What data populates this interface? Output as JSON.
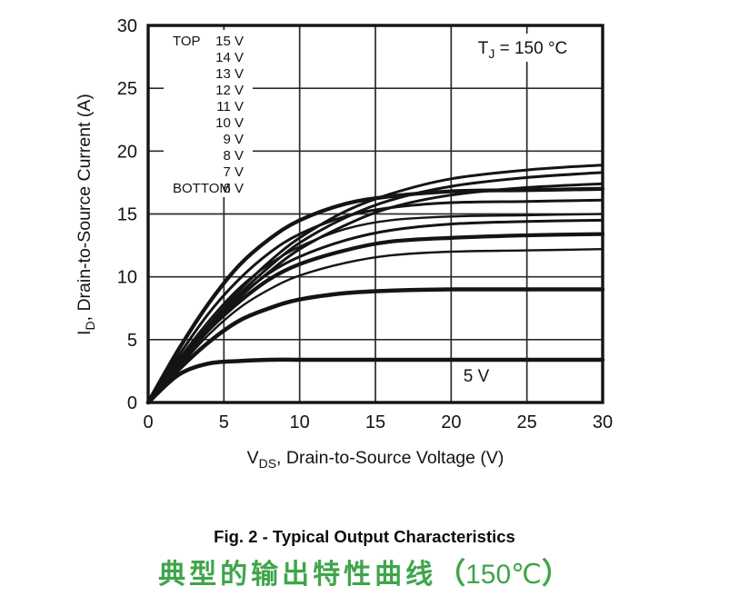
{
  "figure": {
    "y_axis": {
      "label_pre": "I",
      "label_sub": "D",
      "label_post": ", Drain-to-Source Current (A)",
      "ticks": [
        0,
        5,
        10,
        15,
        20,
        25,
        30
      ]
    },
    "x_axis": {
      "label_pre": "V",
      "label_sub": "DS",
      "label_post": ", Drain-to-Source Voltage (V)",
      "ticks": [
        0,
        5,
        10,
        15,
        20,
        25,
        30
      ]
    },
    "annotation": {
      "pre": "T",
      "sub": "J",
      "post": " = 150 °C"
    },
    "inplot_label": "5 V",
    "legend": {
      "top_label": "TOP",
      "bottom_label": "BOTTOM",
      "entries": [
        "15 V",
        "14 V",
        "13 V",
        "12 V",
        "11 V",
        "10 V",
        "9 V",
        "8 V",
        "7 V",
        "6 V"
      ]
    }
  },
  "captions": {
    "fig": "Fig. 2 - Typical Output Characteristics",
    "cn_main": "典型的输出特性曲线",
    "paren_open": "（",
    "temp": "150℃",
    "paren_close": "）"
  },
  "colors": {
    "curve": "#141414",
    "grid": "#2b2b2b",
    "caption_green": "#3fa54a"
  },
  "chart_data": {
    "type": "line",
    "title": "Fig. 2 - Typical Output Characteristics",
    "xlabel": "VDS, Drain-to-Source Voltage (V)",
    "ylabel": "ID, Drain-to-Source Current (A)",
    "annotation": "TJ = 150 °C",
    "xlim": [
      0,
      30
    ],
    "ylim": [
      0,
      30
    ],
    "x_ticks": [
      0,
      5,
      10,
      15,
      20,
      25,
      30
    ],
    "y_ticks": [
      0,
      5,
      10,
      15,
      20,
      25,
      30
    ],
    "grid": true,
    "legend_position": "top-left",
    "x": [
      0,
      2,
      4,
      6,
      8,
      10,
      13,
      16,
      20,
      25,
      30
    ],
    "series": [
      {
        "name": "VGS = 15 V",
        "lw": 3.0,
        "values": [
          0,
          3.2,
          6.2,
          8.9,
          11.2,
          13.1,
          15.2,
          16.6,
          17.8,
          18.5,
          18.9
        ]
      },
      {
        "name": "VGS = 14 V",
        "lw": 3.0,
        "values": [
          0,
          3.1,
          6.0,
          8.6,
          10.8,
          12.7,
          14.7,
          16.1,
          17.2,
          17.9,
          18.3
        ]
      },
      {
        "name": "VGS = 13 V",
        "lw": 3.0,
        "values": [
          0,
          3.0,
          5.8,
          8.3,
          10.4,
          12.2,
          14.1,
          15.5,
          16.5,
          17.1,
          17.4
        ]
      },
      {
        "name": "VGS = 12 V",
        "lw": 4.3,
        "values": [
          0,
          4.2,
          7.9,
          10.9,
          13.0,
          14.5,
          15.8,
          16.4,
          16.8,
          16.9,
          17.0
        ]
      },
      {
        "name": "VGS = 11 V",
        "lw": 3.0,
        "values": [
          0,
          3.7,
          7.1,
          9.8,
          11.9,
          13.4,
          14.8,
          15.5,
          15.9,
          16.0,
          16.1
        ]
      },
      {
        "name": "VGS = 10 V",
        "lw": 2.4,
        "values": [
          0,
          3.4,
          6.5,
          9.1,
          11.0,
          12.4,
          13.8,
          14.5,
          14.8,
          14.9,
          15.0
        ]
      },
      {
        "name": "VGS = 9 V",
        "lw": 3.0,
        "values": [
          0,
          3.1,
          6.0,
          8.4,
          10.3,
          11.6,
          12.9,
          13.7,
          14.2,
          14.4,
          14.5
        ]
      },
      {
        "name": "VGS = 8 V",
        "lw": 4.3,
        "values": [
          0,
          3.0,
          5.8,
          8.0,
          9.8,
          11.0,
          12.1,
          12.8,
          13.1,
          13.3,
          13.4
        ]
      },
      {
        "name": "VGS = 7 V",
        "lw": 2.4,
        "values": [
          0,
          2.8,
          5.4,
          7.5,
          9.0,
          10.1,
          11.1,
          11.7,
          12.0,
          12.1,
          12.2
        ]
      },
      {
        "name": "VGS = 6 V",
        "lw": 4.5,
        "values": [
          0,
          2.6,
          4.8,
          6.5,
          7.5,
          8.2,
          8.7,
          8.9,
          9.0,
          9.0,
          9.0
        ]
      },
      {
        "name": "VGS = 5 V",
        "lw": 4.5,
        "values": [
          0,
          2.2,
          3.1,
          3.3,
          3.4,
          3.4,
          3.4,
          3.4,
          3.4,
          3.4,
          3.4
        ]
      }
    ]
  }
}
